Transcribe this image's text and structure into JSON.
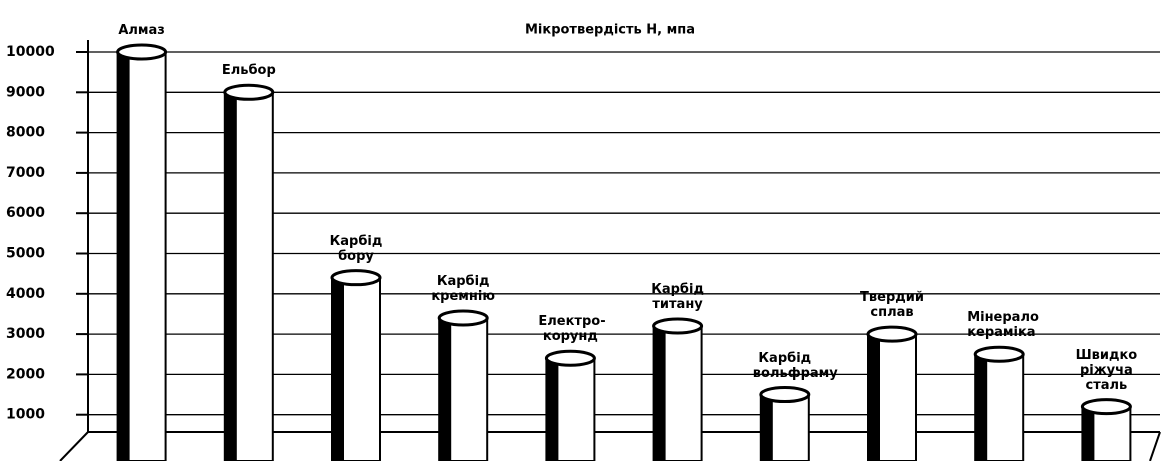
{
  "chart_data": {
    "type": "bar",
    "title": "Мікротвердість Н, мпа",
    "categories": [
      "Алмаз",
      "Ельбор",
      "Карбід бору",
      "Карбід кремнію",
      "Електро-корунд",
      "Карбід титану",
      "Карбід вольфраму",
      "Твердий сплав",
      "Мінерало кераміка",
      "Швидко ріжуча сталь"
    ],
    "values": [
      10000,
      9000,
      4400,
      3400,
      2400,
      3200,
      1500,
      3000,
      2500,
      1200
    ],
    "color": "#ffffff",
    "ylim": [
      0,
      10000
    ],
    "yticks": [
      1000,
      2000,
      3000,
      4000,
      5000,
      6000,
      7000,
      8000,
      9000,
      10000
    ],
    "grid": true
  }
}
